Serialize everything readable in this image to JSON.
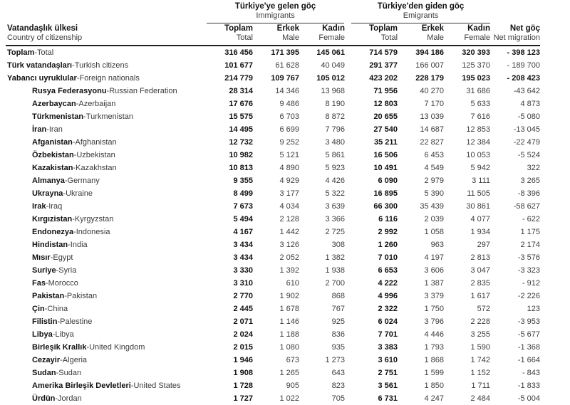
{
  "table": {
    "row_header": {
      "tr": "Vatandaşlık ülkesi",
      "en": "Country of citizenship"
    },
    "groups": {
      "immigrants": {
        "tr": "Türkiye'ye gelen göç",
        "en": "Immigrants"
      },
      "emigrants": {
        "tr": "Türkiye'den giden göç",
        "en": "Emigrants"
      }
    },
    "columns": [
      {
        "tr": "Toplam",
        "en": "Total"
      },
      {
        "tr": "Erkek",
        "en": "Male"
      },
      {
        "tr": "Kadın",
        "en": "Female"
      },
      {
        "tr": "Toplam",
        "en": "Total"
      },
      {
        "tr": "Erkek",
        "en": "Male"
      },
      {
        "tr": "Kadın",
        "en": "Female"
      },
      {
        "tr": "Net göç",
        "en": "Net migration"
      }
    ],
    "rows": [
      {
        "tr": "Toplam",
        "en": "Total",
        "indent": false,
        "bold_all": true,
        "values": [
          "316 456",
          "171 395",
          "145 061",
          "714 579",
          "394 186",
          "320 393",
          "- 398 123"
        ]
      },
      {
        "tr": "Türk vatandaşları",
        "en": "Turkish citizens",
        "indent": false,
        "bold_all": false,
        "values": [
          "101 677",
          "61 628",
          "40 049",
          "291 377",
          "166 007",
          "125 370",
          "- 189 700"
        ]
      },
      {
        "tr": "Yabancı uyruklular",
        "en": "Foreign nationals",
        "indent": false,
        "bold_all": true,
        "values": [
          "214 779",
          "109 767",
          "105 012",
          "423 202",
          "228 179",
          "195 023",
          "- 208 423"
        ]
      },
      {
        "tr": "Rusya Federasyonu",
        "en": "Russian Federation",
        "indent": true,
        "bold_all": false,
        "values": [
          "28 314",
          "14 346",
          "13 968",
          "71 956",
          "40 270",
          "31 686",
          "-43 642"
        ]
      },
      {
        "tr": "Azerbaycan",
        "en": "Azerbaijan",
        "indent": true,
        "bold_all": false,
        "values": [
          "17 676",
          "9 486",
          "8 190",
          "12 803",
          "7 170",
          "5 633",
          "4 873"
        ]
      },
      {
        "tr": "Türkmenistan",
        "en": "Turkmenistan",
        "indent": true,
        "bold_all": false,
        "values": [
          "15 575",
          "6 703",
          "8 872",
          "20 655",
          "13 039",
          "7 616",
          "-5 080"
        ]
      },
      {
        "tr": "İran",
        "en": "Iran",
        "indent": true,
        "bold_all": false,
        "values": [
          "14 495",
          "6 699",
          "7 796",
          "27 540",
          "14 687",
          "12 853",
          "-13 045"
        ]
      },
      {
        "tr": "Afganistan",
        "en": "Afghanistan",
        "indent": true,
        "bold_all": false,
        "values": [
          "12 732",
          "9 252",
          "3 480",
          "35 211",
          "22 827",
          "12 384",
          "-22 479"
        ]
      },
      {
        "tr": "Özbekistan",
        "en": "Uzbekistan",
        "indent": true,
        "bold_all": false,
        "values": [
          "10 982",
          "5 121",
          "5 861",
          "16 506",
          "6 453",
          "10 053",
          "-5 524"
        ]
      },
      {
        "tr": "Kazakistan",
        "en": "Kazakhstan",
        "indent": true,
        "bold_all": false,
        "values": [
          "10 813",
          "4 890",
          "5 923",
          "10 491",
          "4 549",
          "5 942",
          "322"
        ]
      },
      {
        "tr": "Almanya",
        "en": "Germany",
        "indent": true,
        "bold_all": false,
        "values": [
          "9 355",
          "4 929",
          "4 426",
          "6 090",
          "2 979",
          "3 111",
          "3 265"
        ]
      },
      {
        "tr": "Ukrayna",
        "en": "Ukraine",
        "indent": true,
        "bold_all": false,
        "values": [
          "8 499",
          "3 177",
          "5 322",
          "16 895",
          "5 390",
          "11 505",
          "-8 396"
        ]
      },
      {
        "tr": "Irak",
        "en": "Iraq",
        "indent": true,
        "bold_all": false,
        "values": [
          "7 673",
          "4 034",
          "3 639",
          "66 300",
          "35 439",
          "30 861",
          "-58 627"
        ]
      },
      {
        "tr": "Kırgızistan",
        "en": "Kyrgyzstan",
        "indent": true,
        "bold_all": false,
        "values": [
          "5 494",
          "2 128",
          "3 366",
          "6 116",
          "2 039",
          "4 077",
          "- 622"
        ]
      },
      {
        "tr": "Endonezya",
        "en": "Indonesia",
        "indent": true,
        "bold_all": false,
        "values": [
          "4 167",
          "1 442",
          "2 725",
          "2 992",
          "1 058",
          "1 934",
          "1 175"
        ]
      },
      {
        "tr": "Hindistan",
        "en": "India",
        "indent": true,
        "bold_all": false,
        "values": [
          "3 434",
          "3 126",
          "308",
          "1 260",
          "963",
          "297",
          "2 174"
        ]
      },
      {
        "tr": "Mısır",
        "en": "Egypt",
        "indent": true,
        "bold_all": false,
        "values": [
          "3 434",
          "2 052",
          "1 382",
          "7 010",
          "4 197",
          "2 813",
          "-3 576"
        ]
      },
      {
        "tr": "Suriye",
        "en": "Syria",
        "indent": true,
        "bold_all": false,
        "values": [
          "3 330",
          "1 392",
          "1 938",
          "6 653",
          "3 606",
          "3 047",
          "-3 323"
        ]
      },
      {
        "tr": "Fas",
        "en": "Morocco",
        "indent": true,
        "bold_all": false,
        "values": [
          "3 310",
          "610",
          "2 700",
          "4 222",
          "1 387",
          "2 835",
          "- 912"
        ]
      },
      {
        "tr": "Pakistan",
        "en": "Pakistan",
        "indent": true,
        "bold_all": false,
        "values": [
          "2 770",
          "1 902",
          "868",
          "4 996",
          "3 379",
          "1 617",
          "-2 226"
        ]
      },
      {
        "tr": "Çin",
        "en": "China",
        "indent": true,
        "bold_all": false,
        "values": [
          "2 445",
          "1 678",
          "767",
          "2 322",
          "1 750",
          "572",
          "123"
        ]
      },
      {
        "tr": "Filistin",
        "en": "Palestine",
        "indent": true,
        "bold_all": false,
        "values": [
          "2 071",
          "1 146",
          "925",
          "6 024",
          "3 796",
          "2 228",
          "-3 953"
        ]
      },
      {
        "tr": "Libya",
        "en": "Libya",
        "indent": true,
        "bold_all": false,
        "values": [
          "2 024",
          "1 188",
          "836",
          "7 701",
          "4 446",
          "3 255",
          "-5 677"
        ]
      },
      {
        "tr": "Birleşik Krallık",
        "en": "United Kingdom",
        "indent": true,
        "bold_all": false,
        "values": [
          "2 015",
          "1 080",
          "935",
          "3 383",
          "1 793",
          "1 590",
          "-1 368"
        ]
      },
      {
        "tr": "Cezayir",
        "en": "Algeria",
        "indent": true,
        "bold_all": false,
        "values": [
          "1 946",
          "673",
          "1 273",
          "3 610",
          "1 868",
          "1 742",
          "-1 664"
        ]
      },
      {
        "tr": "Sudan",
        "en": "Sudan",
        "indent": true,
        "bold_all": false,
        "values": [
          "1 908",
          "1 265",
          "643",
          "2 751",
          "1 599",
          "1 152",
          "- 843"
        ]
      },
      {
        "tr": "Amerika Birleşik Devletleri",
        "en": "United States",
        "indent": true,
        "bold_all": false,
        "values": [
          "1 728",
          "905",
          "823",
          "3 561",
          "1 850",
          "1 711",
          "-1 833"
        ]
      },
      {
        "tr": "Ürdün",
        "en": "Jordan",
        "indent": true,
        "bold_all": false,
        "values": [
          "1 727",
          "1 022",
          "705",
          "6 731",
          "4 247",
          "2 484",
          "-5 004"
        ]
      }
    ]
  }
}
